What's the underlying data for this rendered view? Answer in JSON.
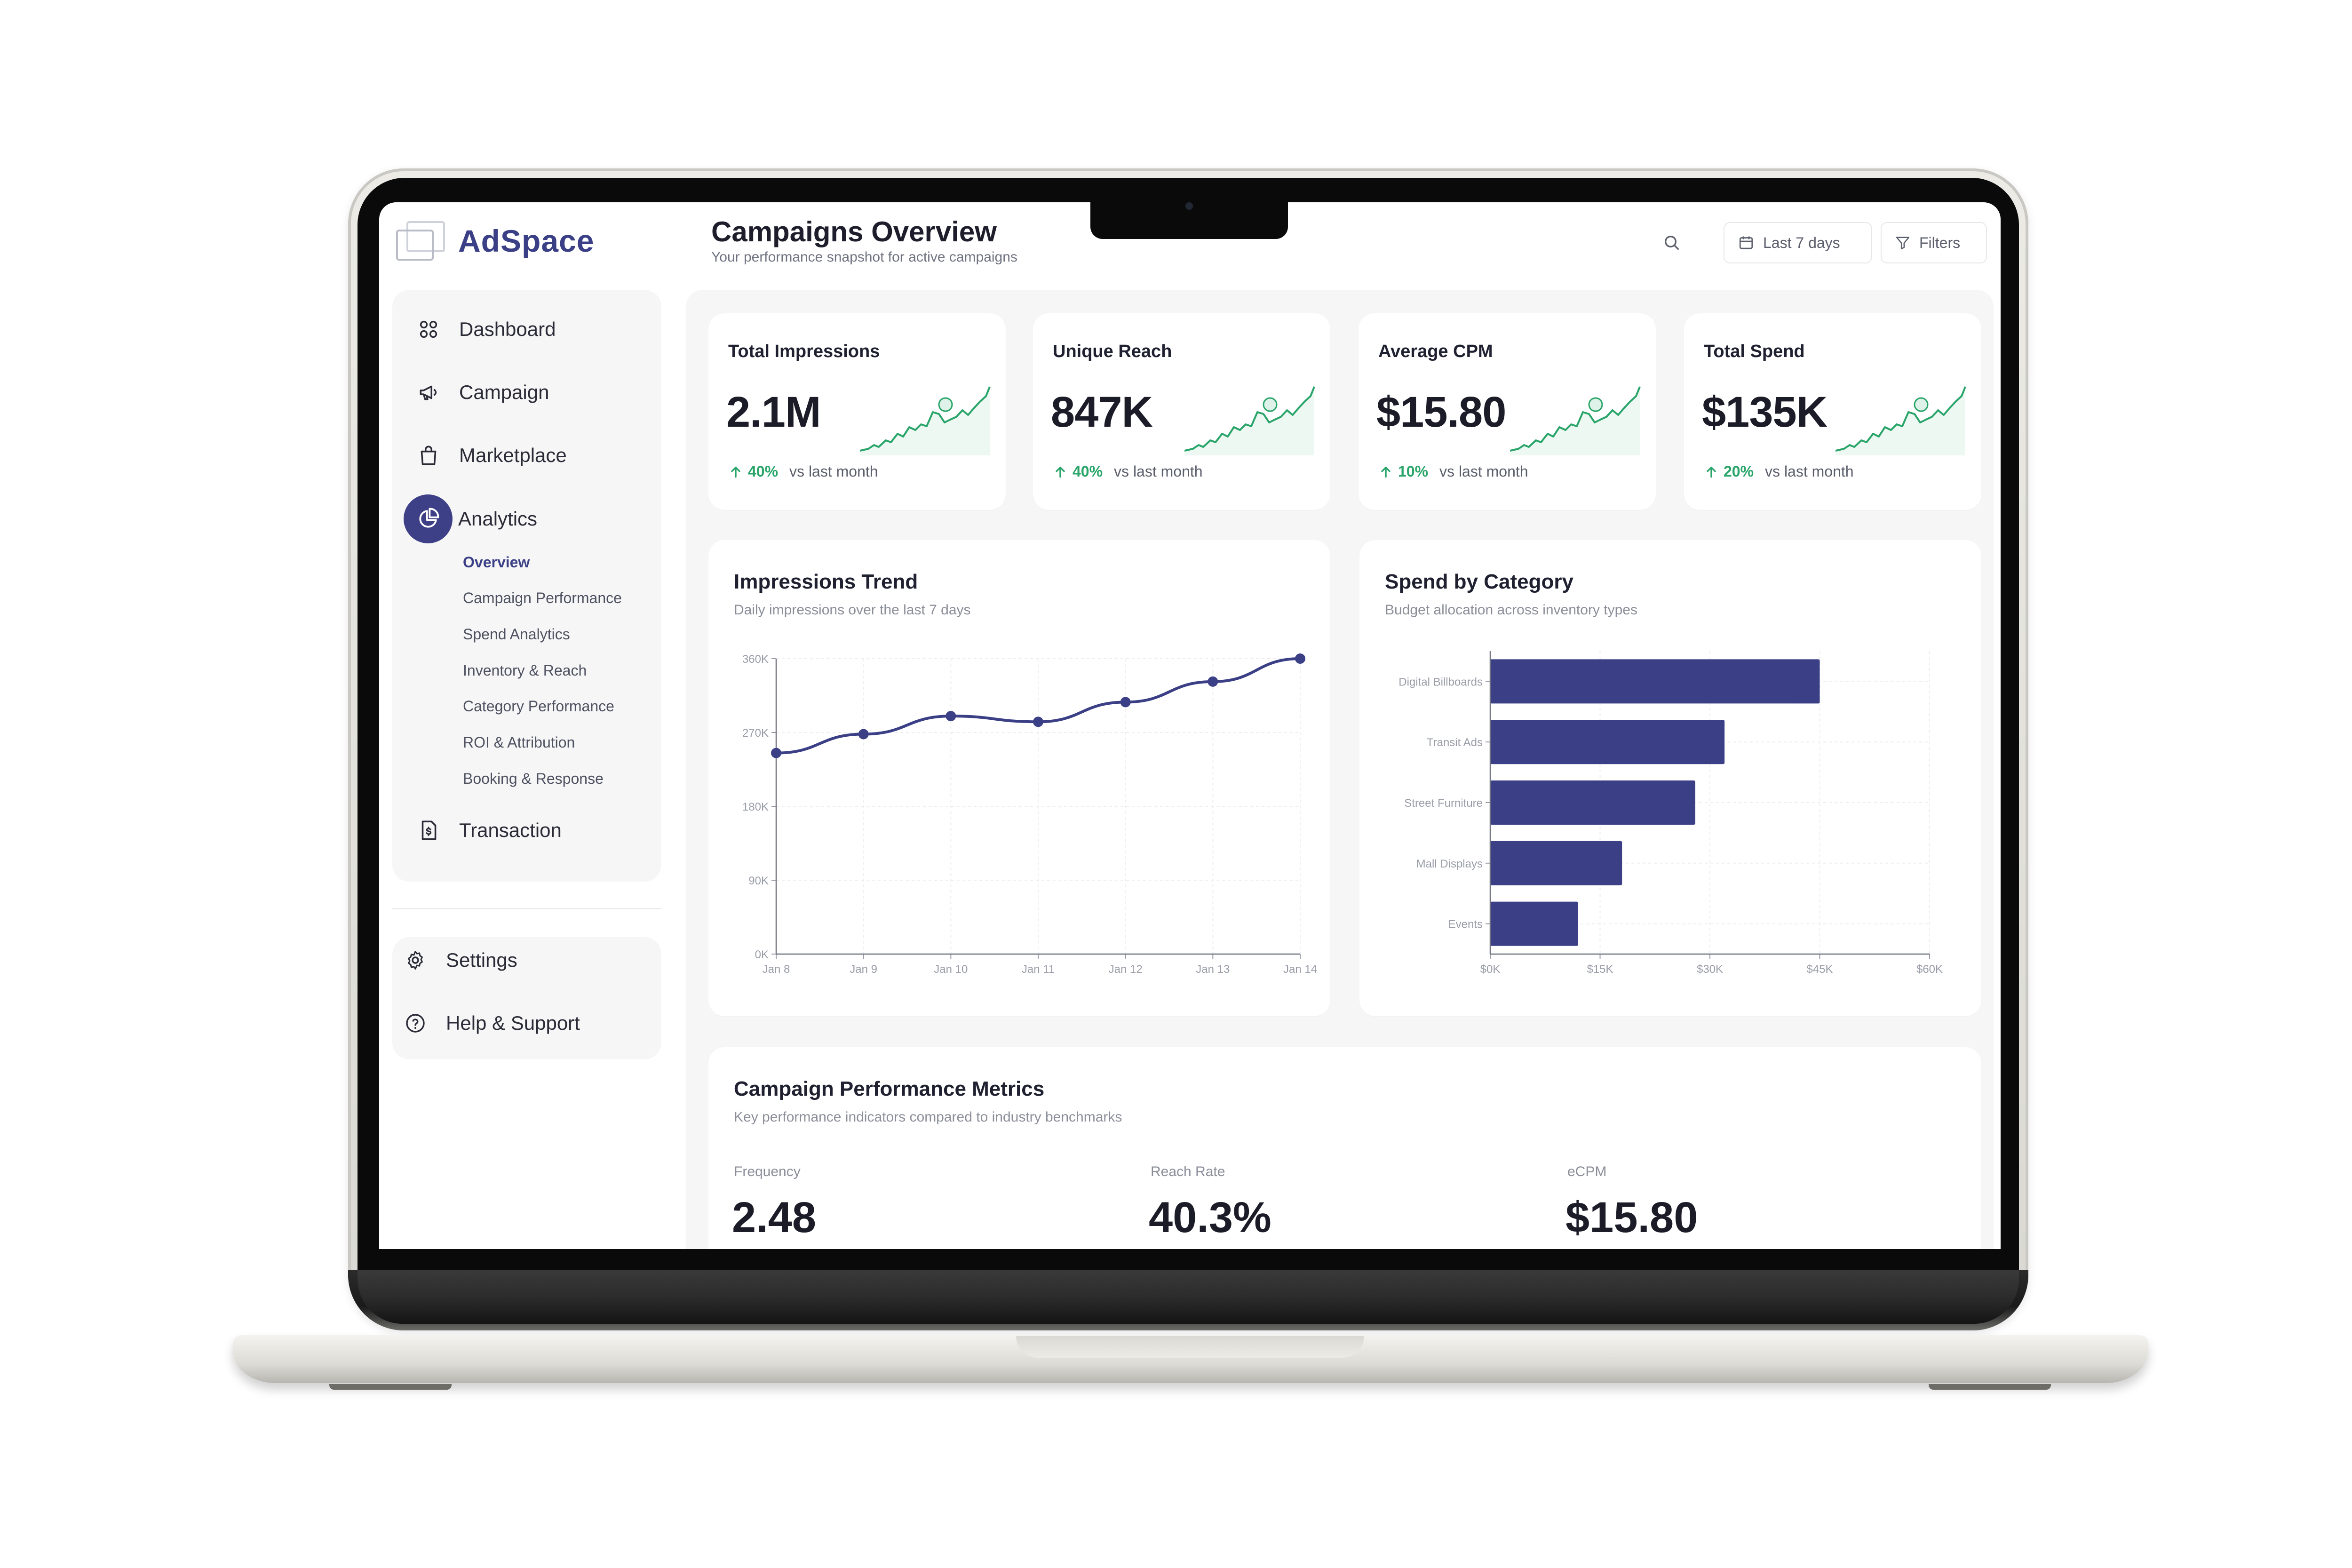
{
  "brand": {
    "name": "AdSpace",
    "accent": "#3b3f86",
    "positive": "#2aa56a"
  },
  "header": {
    "title": "Campaigns Overview",
    "subtitle": "Your performance snapshot for active campaigns",
    "date_range": "Last 7 days",
    "filters_label": "Filters"
  },
  "sidebar": {
    "items": [
      {
        "label": "Dashboard",
        "icon": "grid-icon"
      },
      {
        "label": "Campaign",
        "icon": "megaphone-icon"
      },
      {
        "label": "Marketplace",
        "icon": "shopping-bag-icon"
      },
      {
        "label": "Analytics",
        "icon": "pie-chart-icon",
        "active": true
      },
      {
        "label": "Transaction",
        "icon": "invoice-icon"
      }
    ],
    "analytics_sub": [
      {
        "label": "Overview",
        "active": true
      },
      {
        "label": "Campaign Performance"
      },
      {
        "label": "Spend Analytics"
      },
      {
        "label": "Inventory & Reach"
      },
      {
        "label": "Category Performance"
      },
      {
        "label": "ROI & Attribution"
      },
      {
        "label": "Booking & Response"
      }
    ],
    "bottom": [
      {
        "label": "Settings",
        "icon": "gear-icon"
      },
      {
        "label": "Help & Support",
        "icon": "help-circle-icon"
      }
    ]
  },
  "kpis": [
    {
      "title": "Total Impressions",
      "value": "2.1M",
      "delta": "40%",
      "compare": "vs last month"
    },
    {
      "title": "Unique Reach",
      "value": "847K",
      "delta": "40%",
      "compare": "vs last month"
    },
    {
      "title": "Average CPM",
      "value": "$15.80",
      "delta": "10%",
      "compare": "vs last month"
    },
    {
      "title": "Total Spend",
      "value": "$135K",
      "delta": "20%",
      "compare": "vs last month"
    }
  ],
  "impressions_trend": {
    "title": "Impressions Trend",
    "subtitle": "Daily impressions over the last 7 days"
  },
  "spend_by_category": {
    "title": "Spend by Category",
    "subtitle": "Budget allocation across inventory types"
  },
  "chart_data": [
    {
      "type": "line",
      "title": "Impressions Trend",
      "categories": [
        "Jan 8",
        "Jan 9",
        "Jan 10",
        "Jan 11",
        "Jan 12",
        "Jan 13",
        "Jan 14"
      ],
      "series": [
        {
          "values": [
            245000,
            268000,
            290000,
            283000,
            307000,
            332000,
            360000
          ]
        }
      ],
      "ylim": [
        0,
        360000
      ],
      "yticks": [
        "0K",
        "90K",
        "180K",
        "270K",
        "360K"
      ],
      "grid": true
    },
    {
      "type": "bar",
      "orientation": "horizontal",
      "title": "Spend by Category",
      "categories": [
        "Digital Billboards",
        "Transit Ads",
        "Street Furniture",
        "Mall Displays",
        "Events"
      ],
      "values": [
        45000,
        32000,
        28000,
        18000,
        12000
      ],
      "xlim": [
        0,
        60000
      ],
      "xticks": [
        "$0K",
        "$15K",
        "$30K",
        "$45K",
        "$60K"
      ],
      "grid": true
    }
  ],
  "metrics": {
    "title": "Campaign Performance Metrics",
    "subtitle": "Key performance indicators compared to industry benchmarks",
    "items": [
      {
        "label": "Frequency",
        "value": "2.48"
      },
      {
        "label": "Reach Rate",
        "value": "40.3%"
      },
      {
        "label": "eCPM",
        "value": "$15.80"
      }
    ]
  }
}
